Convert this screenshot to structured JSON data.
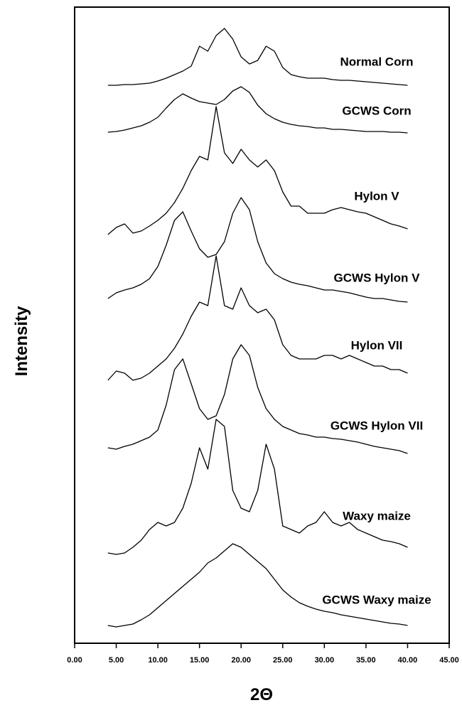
{
  "chart_data": {
    "type": "line",
    "xlabel": "2Θ",
    "ylabel": "Intensity",
    "xlim": [
      0,
      45
    ],
    "ylim": [
      0,
      895
    ],
    "xticks": [
      {
        "value": 0,
        "label": "0.00"
      },
      {
        "value": 5,
        "label": "5.00"
      },
      {
        "value": 10,
        "label": "10.00"
      },
      {
        "value": 15,
        "label": "15.00"
      },
      {
        "value": 20,
        "label": "20.00"
      },
      {
        "value": 25,
        "label": "25.00"
      },
      {
        "value": 30,
        "label": "30.00"
      },
      {
        "value": 35,
        "label": "35.00"
      },
      {
        "value": 40,
        "label": "40.00"
      },
      {
        "value": 45,
        "label": "45.00"
      }
    ],
    "x": [
      4,
      5,
      6,
      7,
      8,
      9,
      10,
      11,
      12,
      13,
      14,
      15,
      16,
      17,
      18,
      19,
      20,
      21,
      22,
      23,
      24,
      25,
      26,
      27,
      28,
      29,
      30,
      31,
      32,
      33,
      34,
      35,
      36,
      37,
      38,
      39,
      40
    ],
    "series": [
      {
        "name": "Normal Corn",
        "color": "#000000",
        "values": [
          785,
          785,
          786,
          786,
          787,
          788,
          791,
          795,
          800,
          805,
          812,
          840,
          833,
          855,
          865,
          850,
          825,
          815,
          820,
          840,
          833,
          810,
          800,
          797,
          795,
          795,
          795,
          793,
          792,
          792,
          791,
          790,
          789,
          788,
          787,
          786,
          785
        ]
      },
      {
        "name": "GCWS Corn",
        "color": "#000000",
        "values": [
          719,
          720,
          722,
          725,
          728,
          733,
          740,
          753,
          765,
          773,
          767,
          762,
          760,
          758,
          765,
          777,
          783,
          775,
          757,
          745,
          738,
          733,
          730,
          728,
          727,
          725,
          725,
          723,
          723,
          722,
          721,
          720,
          720,
          720,
          719,
          719,
          718
        ]
      },
      {
        "name": "Hylon V",
        "color": "#000000",
        "values": [
          575,
          585,
          590,
          577,
          580,
          587,
          595,
          605,
          620,
          640,
          665,
          685,
          680,
          755,
          690,
          675,
          695,
          680,
          670,
          680,
          665,
          635,
          615,
          615,
          605,
          605,
          605,
          610,
          613,
          610,
          607,
          605,
          600,
          595,
          590,
          587,
          583
        ]
      },
      {
        "name": "GCWS Hylon V",
        "color": "#000000",
        "values": [
          485,
          493,
          497,
          500,
          505,
          513,
          530,
          560,
          595,
          607,
          580,
          555,
          543,
          547,
          565,
          605,
          627,
          610,
          565,
          535,
          520,
          513,
          508,
          505,
          503,
          500,
          497,
          497,
          495,
          493,
          490,
          487,
          485,
          485,
          483,
          481,
          480
        ]
      },
      {
        "name": "Hylon VII",
        "color": "#000000",
        "values": [
          370,
          383,
          380,
          370,
          373,
          380,
          390,
          400,
          415,
          435,
          460,
          480,
          475,
          545,
          475,
          470,
          500,
          475,
          465,
          470,
          455,
          420,
          405,
          400,
          400,
          400,
          405,
          405,
          400,
          405,
          400,
          395,
          390,
          390,
          385,
          385,
          380
        ]
      },
      {
        "name": "GCWS Hylon VII",
        "color": "#000000",
        "values": [
          275,
          273,
          277,
          280,
          285,
          290,
          300,
          335,
          385,
          400,
          365,
          330,
          315,
          320,
          350,
          400,
          420,
          405,
          360,
          330,
          315,
          305,
          300,
          295,
          293,
          290,
          290,
          288,
          287,
          285,
          283,
          280,
          277,
          275,
          273,
          271,
          267
        ]
      },
      {
        "name": "Waxy maize",
        "color": "#000000",
        "values": [
          127,
          125,
          127,
          135,
          145,
          160,
          170,
          165,
          170,
          190,
          225,
          275,
          245,
          315,
          305,
          215,
          190,
          185,
          215,
          280,
          245,
          165,
          160,
          155,
          165,
          170,
          185,
          170,
          165,
          170,
          160,
          155,
          150,
          145,
          143,
          140,
          135
        ]
      },
      {
        "name": "GCWS Waxy maize",
        "color": "#000000",
        "values": [
          25,
          23,
          25,
          27,
          33,
          40,
          50,
          60,
          70,
          80,
          90,
          100,
          113,
          120,
          130,
          140,
          135,
          125,
          115,
          105,
          90,
          75,
          65,
          57,
          52,
          48,
          45,
          43,
          40,
          38,
          36,
          34,
          32,
          30,
          28,
          27,
          25
        ]
      }
    ]
  }
}
